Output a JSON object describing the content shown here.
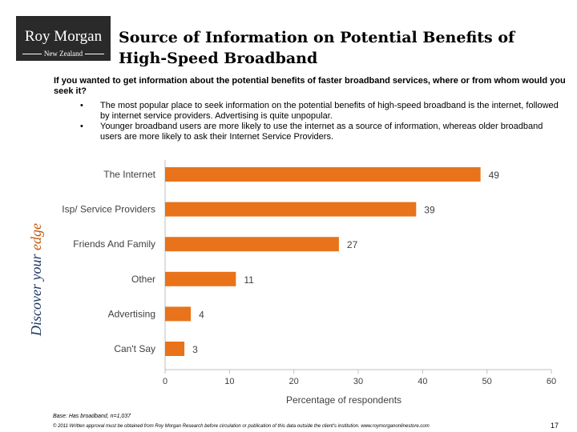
{
  "logo": {
    "name": "Roy Morgan",
    "region": "New Zealand"
  },
  "tagline": {
    "part1": "Discover your ",
    "part2": "edge"
  },
  "title": "Source of Information on Potential Benefits of High-Speed Broadband",
  "question": "If you wanted to get information about the potential benefits of faster broadband services, where or from whom would you seek it?",
  "bullets": [
    "The most popular place to seek information on the potential benefits of high-speed broadband is the internet, followed by internet service providers.  Advertising is quite unpopular.",
    "Younger broadband users are more likely to use the internet as a source of information, whereas older broadband users are more likely to ask their Internet Service Providers."
  ],
  "chart_data": {
    "type": "bar",
    "orientation": "horizontal",
    "categories": [
      "The Internet",
      "Isp/ Service Providers",
      "Friends And Family",
      "Other",
      "Advertising",
      "Can't Say"
    ],
    "values": [
      49,
      39,
      27,
      11,
      4,
      3
    ],
    "xlabel": "Percentage of respondents",
    "ylabel": "",
    "xlim": [
      0,
      60
    ],
    "xticks": [
      0,
      10,
      20,
      30,
      40,
      50,
      60
    ],
    "grid": false,
    "bar_color": "#e8731a"
  },
  "footer": {
    "base": "Base: Has broadband, n=1,037",
    "copyright": "© 2011 Written approval must be obtained from Roy Morgan Research before circulation or publication of this data outside the client's institution. www.roymorganonlinestore.com",
    "page": "17"
  }
}
